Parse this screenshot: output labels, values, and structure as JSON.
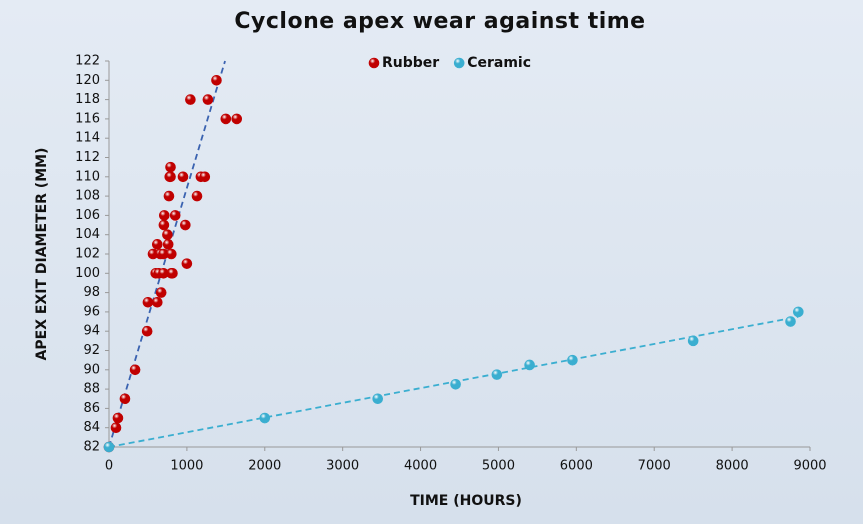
{
  "chart_data": {
    "type": "scatter",
    "title": "Cyclone apex wear against time",
    "x_label": "TIME (HOURS)",
    "y_label": "APEX EXIT DIAMETER (MM)",
    "xlim": [
      0,
      9000
    ],
    "ylim": [
      82,
      122
    ],
    "xticks": [
      0,
      1000,
      2000,
      3000,
      4000,
      5000,
      6000,
      7000,
      8000,
      9000
    ],
    "yticks": [
      82,
      84,
      86,
      88,
      90,
      92,
      94,
      96,
      98,
      100,
      102,
      104,
      106,
      108,
      110,
      112,
      114,
      116,
      118,
      120,
      122
    ],
    "series": [
      {
        "name": "Rubber",
        "color": "#c00000",
        "x": [
          0,
          90,
          115,
          205,
          335,
          490,
          500,
          620,
          670,
          565,
          600,
          640,
          660,
          700,
          700,
          620,
          760,
          750,
          705,
          710,
          800,
          815,
          800,
          850,
          980,
          1000,
          770,
          1130,
          780,
          790,
          950,
          1180,
          1230,
          790,
          1045,
          1270,
          1380,
          1500,
          1640
        ],
        "values": [
          82,
          84,
          85,
          87,
          90,
          94,
          97,
          97,
          98,
          102,
          100,
          100,
          102,
          102,
          100,
          103,
          103,
          104,
          105,
          106,
          100,
          100,
          102,
          106,
          105,
          101,
          108,
          108,
          110,
          110,
          110,
          110,
          110,
          111,
          118,
          118,
          120,
          116,
          116
        ],
        "trendline": {
          "color": "#3a62b0",
          "x": [
            0,
            1490
          ],
          "y": [
            82,
            122
          ]
        }
      },
      {
        "name": "Ceramic",
        "color": "#3aaed0",
        "x": [
          0,
          2000,
          3450,
          4450,
          4980,
          5400,
          5950,
          7500,
          8750,
          8850
        ],
        "values": [
          82,
          85,
          87,
          88.5,
          89.5,
          90.5,
          91,
          93,
          95,
          96
        ],
        "trendline": {
          "color": "#3aaed0",
          "x": [
            0,
            8850
          ],
          "y": [
            82,
            95.5
          ]
        }
      }
    ]
  }
}
